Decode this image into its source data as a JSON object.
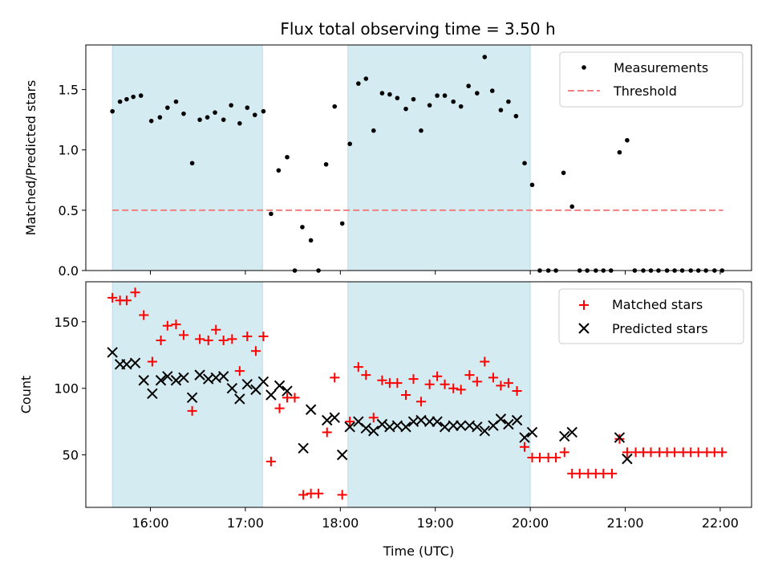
{
  "chart_data": {
    "type": "scatter",
    "title": "Flux total observing time = 3.50 h",
    "xlabel": "Time (UTC)",
    "x_ticks": [
      16,
      17,
      18,
      19,
      20,
      21,
      22
    ],
    "x_tick_labels": [
      "16:00",
      "17:00",
      "18:00",
      "19:00",
      "20:00",
      "21:00",
      "22:00"
    ],
    "xlim": [
      15.32,
      22.33
    ],
    "shaded_intervals": [
      [
        15.6,
        17.18
      ],
      [
        18.08,
        20.0
      ]
    ],
    "shade_color": "#d4ebf1",
    "top": {
      "ylabel": "Matched/Predicted stars",
      "ylim": [
        0,
        1.87
      ],
      "y_ticks": [
        0.0,
        0.5,
        1.0,
        1.5
      ],
      "y_tick_labels": [
        "0.0",
        "0.5",
        "1.0",
        "1.5"
      ],
      "threshold": 0.5,
      "threshold_x": [
        15.6,
        22.03
      ],
      "threshold_color": "#f08080",
      "legend": {
        "measurements": "Measurements",
        "threshold": "Threshold"
      },
      "measurements": [
        [
          15.6,
          1.32
        ],
        [
          15.68,
          1.4
        ],
        [
          15.75,
          1.42
        ],
        [
          15.82,
          1.44
        ],
        [
          15.9,
          1.45
        ],
        [
          16.01,
          1.24
        ],
        [
          16.1,
          1.27
        ],
        [
          16.18,
          1.35
        ],
        [
          16.27,
          1.4
        ],
        [
          16.35,
          1.3
        ],
        [
          16.44,
          0.89
        ],
        [
          16.52,
          1.25
        ],
        [
          16.6,
          1.27
        ],
        [
          16.68,
          1.31
        ],
        [
          16.77,
          1.25
        ],
        [
          16.85,
          1.37
        ],
        [
          16.94,
          1.22
        ],
        [
          17.02,
          1.35
        ],
        [
          17.1,
          1.29
        ],
        [
          17.19,
          1.32
        ],
        [
          17.27,
          0.47
        ],
        [
          17.35,
          0.83
        ],
        [
          17.44,
          0.94
        ],
        [
          17.52,
          0.0
        ],
        [
          17.6,
          0.36
        ],
        [
          17.69,
          0.25
        ],
        [
          17.77,
          0.0
        ],
        [
          17.85,
          0.88
        ],
        [
          17.94,
          1.36
        ],
        [
          18.02,
          0.39
        ],
        [
          18.1,
          1.05
        ],
        [
          18.19,
          1.55
        ],
        [
          18.27,
          1.59
        ],
        [
          18.35,
          1.16
        ],
        [
          18.44,
          1.47
        ],
        [
          18.52,
          1.46
        ],
        [
          18.6,
          1.43
        ],
        [
          18.69,
          1.34
        ],
        [
          18.77,
          1.42
        ],
        [
          18.85,
          1.16
        ],
        [
          18.94,
          1.37
        ],
        [
          19.02,
          1.45
        ],
        [
          19.1,
          1.45
        ],
        [
          19.19,
          1.4
        ],
        [
          19.27,
          1.36
        ],
        [
          19.35,
          1.53
        ],
        [
          19.44,
          1.47
        ],
        [
          19.52,
          1.77
        ],
        [
          19.6,
          1.49
        ],
        [
          19.69,
          1.33
        ],
        [
          19.77,
          1.4
        ],
        [
          19.85,
          1.28
        ],
        [
          19.94,
          0.89
        ],
        [
          20.02,
          0.71
        ],
        [
          20.1,
          0.0
        ],
        [
          20.19,
          0.0
        ],
        [
          20.27,
          0.0
        ],
        [
          20.35,
          0.81
        ],
        [
          20.44,
          0.53
        ],
        [
          20.52,
          0.0
        ],
        [
          20.6,
          0.0
        ],
        [
          20.69,
          0.0
        ],
        [
          20.77,
          0.0
        ],
        [
          20.85,
          0.0
        ],
        [
          20.94,
          0.98
        ],
        [
          21.02,
          1.08
        ],
        [
          21.1,
          0.0
        ],
        [
          21.19,
          0.0
        ],
        [
          21.27,
          0.0
        ],
        [
          21.35,
          0.0
        ],
        [
          21.44,
          0.0
        ],
        [
          21.52,
          0.0
        ],
        [
          21.6,
          0.0
        ],
        [
          21.69,
          0.0
        ],
        [
          21.77,
          0.0
        ],
        [
          21.85,
          0.0
        ],
        [
          21.94,
          0.0
        ],
        [
          22.02,
          0.0
        ]
      ]
    },
    "bottom": {
      "ylabel": "Count",
      "ylim": [
        10.6,
        180
      ],
      "y_ticks": [
        50,
        100,
        150
      ],
      "y_tick_labels": [
        "50",
        "100",
        "150"
      ],
      "matched_color": "#ff0000",
      "predicted_color": "#000000",
      "legend": {
        "matched": "Matched stars",
        "predicted": "Predicted stars"
      },
      "matched": [
        [
          15.6,
          168
        ],
        [
          15.68,
          166
        ],
        [
          15.75,
          166
        ],
        [
          15.84,
          172
        ],
        [
          15.93,
          155
        ],
        [
          16.02,
          120
        ],
        [
          16.11,
          136
        ],
        [
          16.18,
          147
        ],
        [
          16.27,
          148
        ],
        [
          16.35,
          140
        ],
        [
          16.44,
          83
        ],
        [
          16.52,
          137
        ],
        [
          16.61,
          136
        ],
        [
          16.69,
          144
        ],
        [
          16.77,
          136
        ],
        [
          16.86,
          137
        ],
        [
          16.94,
          113
        ],
        [
          17.02,
          139
        ],
        [
          17.11,
          128
        ],
        [
          17.19,
          139
        ],
        [
          17.27,
          45
        ],
        [
          17.36,
          85
        ],
        [
          17.44,
          93
        ],
        [
          17.52,
          93
        ],
        [
          17.61,
          20
        ],
        [
          17.69,
          21
        ],
        [
          17.77,
          21
        ],
        [
          17.86,
          67
        ],
        [
          17.94,
          108
        ],
        [
          18.02,
          20
        ],
        [
          18.1,
          75
        ],
        [
          18.19,
          116
        ],
        [
          18.27,
          110
        ],
        [
          18.35,
          78
        ],
        [
          18.44,
          106
        ],
        [
          18.52,
          104
        ],
        [
          18.6,
          104
        ],
        [
          18.69,
          95
        ],
        [
          18.77,
          107
        ],
        [
          18.85,
          90
        ],
        [
          18.94,
          103
        ],
        [
          19.02,
          109
        ],
        [
          19.1,
          103
        ],
        [
          19.19,
          100
        ],
        [
          19.27,
          99
        ],
        [
          19.36,
          110
        ],
        [
          19.44,
          105
        ],
        [
          19.52,
          120
        ],
        [
          19.61,
          108
        ],
        [
          19.69,
          102
        ],
        [
          19.77,
          104
        ],
        [
          19.86,
          98
        ],
        [
          19.94,
          56
        ],
        [
          20.02,
          48
        ],
        [
          20.1,
          48
        ],
        [
          20.19,
          48
        ],
        [
          20.27,
          48
        ],
        [
          20.36,
          52
        ],
        [
          20.44,
          36
        ],
        [
          20.52,
          36
        ],
        [
          20.61,
          36
        ],
        [
          20.69,
          36
        ],
        [
          20.77,
          36
        ],
        [
          20.86,
          36
        ],
        [
          20.94,
          62
        ],
        [
          21.02,
          52
        ],
        [
          21.11,
          52
        ],
        [
          21.19,
          52
        ],
        [
          21.27,
          52
        ],
        [
          21.36,
          52
        ],
        [
          21.44,
          52
        ],
        [
          21.52,
          52
        ],
        [
          21.61,
          52
        ],
        [
          21.69,
          52
        ],
        [
          21.77,
          52
        ],
        [
          21.86,
          52
        ],
        [
          21.94,
          52
        ],
        [
          22.02,
          52
        ]
      ],
      "predicted": [
        [
          15.6,
          127
        ],
        [
          15.68,
          118
        ],
        [
          15.75,
          118
        ],
        [
          15.84,
          119
        ],
        [
          15.93,
          106
        ],
        [
          16.02,
          96
        ],
        [
          16.11,
          106
        ],
        [
          16.18,
          109
        ],
        [
          16.27,
          106
        ],
        [
          16.35,
          108
        ],
        [
          16.44,
          93
        ],
        [
          16.52,
          110
        ],
        [
          16.61,
          107
        ],
        [
          16.69,
          108
        ],
        [
          16.77,
          109
        ],
        [
          16.86,
          100
        ],
        [
          16.94,
          92
        ],
        [
          17.02,
          103
        ],
        [
          17.11,
          99
        ],
        [
          17.19,
          105
        ],
        [
          17.27,
          95
        ],
        [
          17.36,
          102
        ],
        [
          17.44,
          98
        ],
        [
          17.61,
          55
        ],
        [
          17.69,
          84
        ],
        [
          17.86,
          76
        ],
        [
          17.94,
          78
        ],
        [
          18.02,
          50
        ],
        [
          18.1,
          71
        ],
        [
          18.19,
          75
        ],
        [
          18.27,
          70
        ],
        [
          18.35,
          68
        ],
        [
          18.44,
          73
        ],
        [
          18.52,
          71
        ],
        [
          18.6,
          72
        ],
        [
          18.69,
          71
        ],
        [
          18.77,
          75
        ],
        [
          18.85,
          76
        ],
        [
          18.94,
          75
        ],
        [
          19.02,
          75
        ],
        [
          19.1,
          71
        ],
        [
          19.19,
          72
        ],
        [
          19.27,
          72
        ],
        [
          19.36,
          72
        ],
        [
          19.44,
          71
        ],
        [
          19.52,
          68
        ],
        [
          19.61,
          72
        ],
        [
          19.69,
          77
        ],
        [
          19.77,
          73
        ],
        [
          19.86,
          76
        ],
        [
          19.94,
          63
        ],
        [
          20.02,
          67
        ],
        [
          20.36,
          64
        ],
        [
          20.44,
          67
        ],
        [
          20.94,
          63
        ],
        [
          21.02,
          47
        ]
      ]
    }
  }
}
